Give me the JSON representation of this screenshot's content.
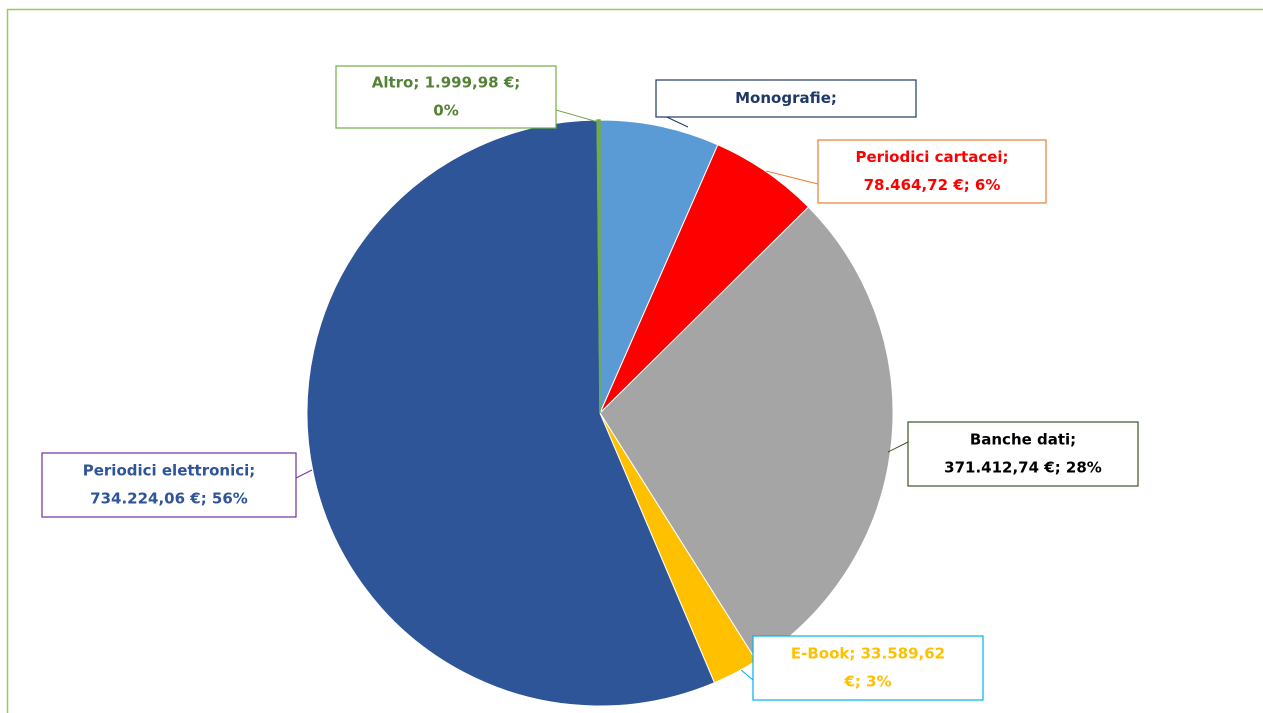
{
  "chart_data": {
    "type": "pie",
    "categories": [
      "Monografie",
      "Periodici cartacei",
      "Banche dati",
      "E-Book",
      "Periodici elettronici",
      "Altro"
    ],
    "values": [
      86000,
      78464.72,
      371412.74,
      33589.62,
      734224.06,
      1999.98
    ],
    "value_labels": [
      [
        "Monografie;"
      ],
      [
        "Periodici cartacei;",
        "78.464,72 €; 6%"
      ],
      [
        "Banche dati;",
        "371.412,74 €; 28%"
      ],
      [
        "E-Book; 33.589,62",
        "€; 3%"
      ],
      [
        "Periodici elettronici;",
        "734.224,06 €; 56%"
      ],
      [
        "Altro; 1.999,98 €;",
        "0%"
      ]
    ],
    "colors": [
      "#5b9bd5",
      "#ff0000",
      "#a5a5a5",
      "#ffc000",
      "#2e5597",
      "#70ad47"
    ],
    "label_colors": [
      "#1f3864",
      "#ff0000",
      "#000000",
      "#ffc000",
      "#2e5597",
      "#548235"
    ],
    "label_borders": [
      "#1f3864",
      "#ed7d31",
      "#385723",
      "#00b0f0",
      "#7030a0",
      "#70ad47"
    ]
  }
}
